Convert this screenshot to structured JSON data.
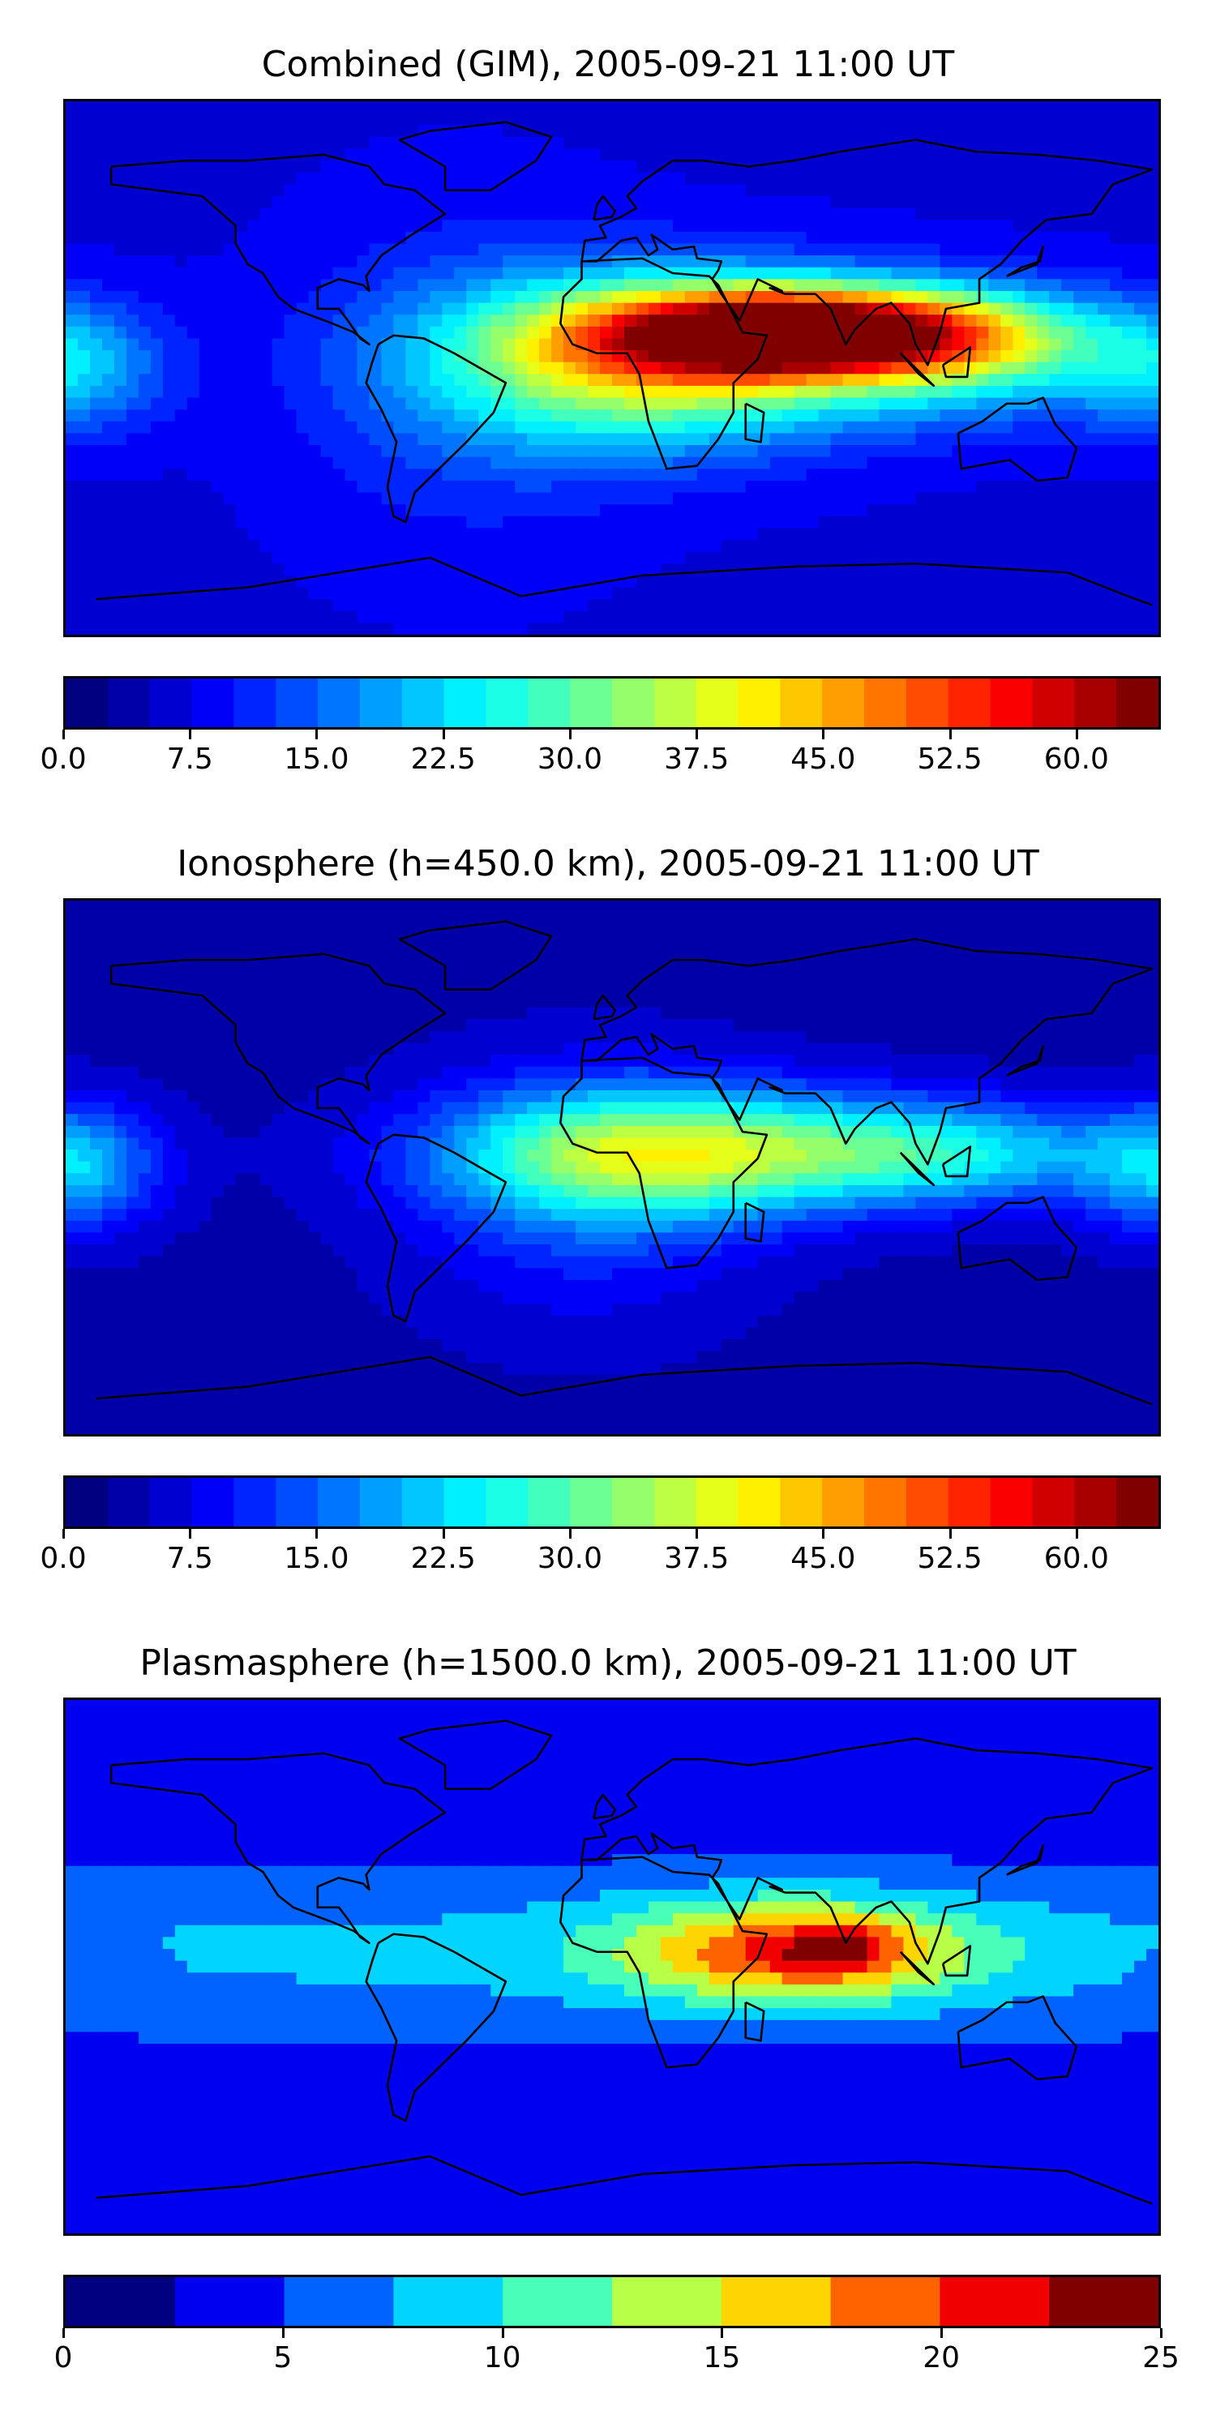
{
  "panels": [
    {
      "title": "Combined (GIM), 2005-09-21 11:00 UT",
      "colorbar": {
        "min": 0,
        "max": 65,
        "levels": 26,
        "ticks": [
          0,
          7.5,
          15,
          22.5,
          30,
          37.5,
          45,
          52.5,
          60
        ],
        "tick_labels": [
          "0.0",
          "7.5",
          "15.0",
          "22.5",
          "30.0",
          "37.5",
          "45.0",
          "52.5",
          "60.0"
        ]
      },
      "field": {
        "background": 7,
        "blobs": [
          {
            "lon": 65,
            "lat": 12,
            "value": 56,
            "sx": 45,
            "sy": 10
          },
          {
            "lon": 30,
            "lat": 5,
            "value": 22,
            "sx": 55,
            "sy": 18
          },
          {
            "lon": 5,
            "lat": 0,
            "value": 14,
            "sx": 45,
            "sy": 22
          },
          {
            "lon": 120,
            "lat": 5,
            "value": 14,
            "sx": 35,
            "sy": 15
          },
          {
            "lon": -178,
            "lat": 0,
            "value": 13,
            "sx": 22,
            "sy": 15
          },
          {
            "lon": -50,
            "lat": -5,
            "value": 5,
            "sx": 40,
            "sy": 40
          }
        ]
      }
    },
    {
      "title": "Ionosphere  (h=450.0 km), 2005-09-21 11:00 UT",
      "colorbar": {
        "min": 0,
        "max": 65,
        "levels": 26,
        "ticks": [
          0,
          7.5,
          15,
          22.5,
          30,
          37.5,
          45,
          52.5,
          60
        ],
        "tick_labels": [
          "0.0",
          "7.5",
          "15.0",
          "22.5",
          "30.0",
          "37.5",
          "45.0",
          "52.5",
          "60.0"
        ]
      },
      "field": {
        "background": 4,
        "blobs": [
          {
            "lon": 20,
            "lat": 5,
            "value": 30,
            "sx": 50,
            "sy": 15
          },
          {
            "lon": 110,
            "lat": 5,
            "value": 18,
            "sx": 40,
            "sy": 12
          },
          {
            "lon": -178,
            "lat": 0,
            "value": 16,
            "sx": 20,
            "sy": 15
          },
          {
            "lon": -10,
            "lat": -10,
            "value": 8,
            "sx": 40,
            "sy": 30
          }
        ]
      }
    },
    {
      "title": "Plasmasphere (h=1500.0 km), 2005-09-21 11:00 UT",
      "colorbar": {
        "min": 0,
        "max": 25,
        "levels": 10,
        "ticks": [
          0,
          5,
          10,
          15,
          20,
          25
        ],
        "tick_labels": [
          "0",
          "5",
          "10",
          "15",
          "20",
          "25"
        ]
      },
      "field": {
        "background": 3,
        "blobs": [
          {
            "lon": 0,
            "lat": 5,
            "value": 5,
            "sx": 500,
            "sy": 22
          },
          {
            "lon": 60,
            "lat": 5,
            "value": 13,
            "sx": 40,
            "sy": 12
          },
          {
            "lon": 75,
            "lat": 7,
            "value": 5,
            "sx": 12,
            "sy": 6
          },
          {
            "lon": -165,
            "lat": 0,
            "value": -2,
            "sx": 12,
            "sy": 6
          }
        ]
      }
    }
  ]
}
